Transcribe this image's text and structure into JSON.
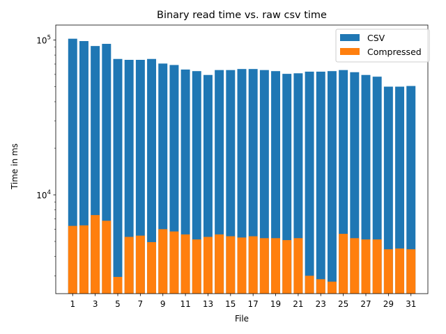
{
  "chart_data": {
    "type": "bar",
    "title": "Binary read time vs. raw csv time",
    "xlabel": "File",
    "ylabel": "Time in ms",
    "y_scale": "log",
    "ylim": [
      2300,
      125000
    ],
    "xlim": [
      -0.5,
      32.5
    ],
    "x": [
      1,
      2,
      3,
      4,
      5,
      6,
      7,
      8,
      9,
      10,
      11,
      12,
      13,
      14,
      15,
      16,
      17,
      18,
      19,
      20,
      21,
      22,
      23,
      24,
      25,
      26,
      27,
      28,
      29,
      30,
      31
    ],
    "x_tick_values": [
      1,
      3,
      5,
      7,
      9,
      11,
      13,
      15,
      17,
      19,
      21,
      23,
      25,
      27,
      29,
      31
    ],
    "x_tick_labels": [
      "1",
      "3",
      "5",
      "7",
      "9",
      "11",
      "13",
      "15",
      "17",
      "19",
      "21",
      "23",
      "25",
      "27",
      "29",
      "31"
    ],
    "y_major_ticks": [
      {
        "value": 10000,
        "base": "10",
        "exponent": "4"
      },
      {
        "value": 100000,
        "base": "10",
        "exponent": "5"
      }
    ],
    "y_minor_ticks": [
      3000,
      4000,
      5000,
      6000,
      7000,
      8000,
      9000,
      20000,
      30000,
      40000,
      50000,
      60000,
      70000,
      80000,
      90000
    ],
    "grid": false,
    "legend_position": "top-right",
    "series": [
      {
        "name": "CSV",
        "color": "#1f77b4",
        "values": [
          102000,
          98500,
          91500,
          94500,
          75500,
          74500,
          74500,
          75500,
          70500,
          69000,
          64500,
          63000,
          59500,
          64000,
          64000,
          65000,
          65000,
          64000,
          63000,
          60500,
          61000,
          62500,
          62500,
          63000,
          64000,
          62000,
          59500,
          58000,
          50000,
          50000,
          50500
        ]
      },
      {
        "name": "Compressed",
        "color": "#ff7f0e",
        "values": [
          6300,
          6350,
          7400,
          6800,
          2950,
          5350,
          5450,
          4950,
          6000,
          5800,
          5550,
          5150,
          5350,
          5550,
          5400,
          5300,
          5400,
          5250,
          5250,
          5100,
          5250,
          3000,
          2850,
          2750,
          5600,
          5250,
          5150,
          5150,
          4450,
          4500,
          4450
        ]
      }
    ]
  }
}
